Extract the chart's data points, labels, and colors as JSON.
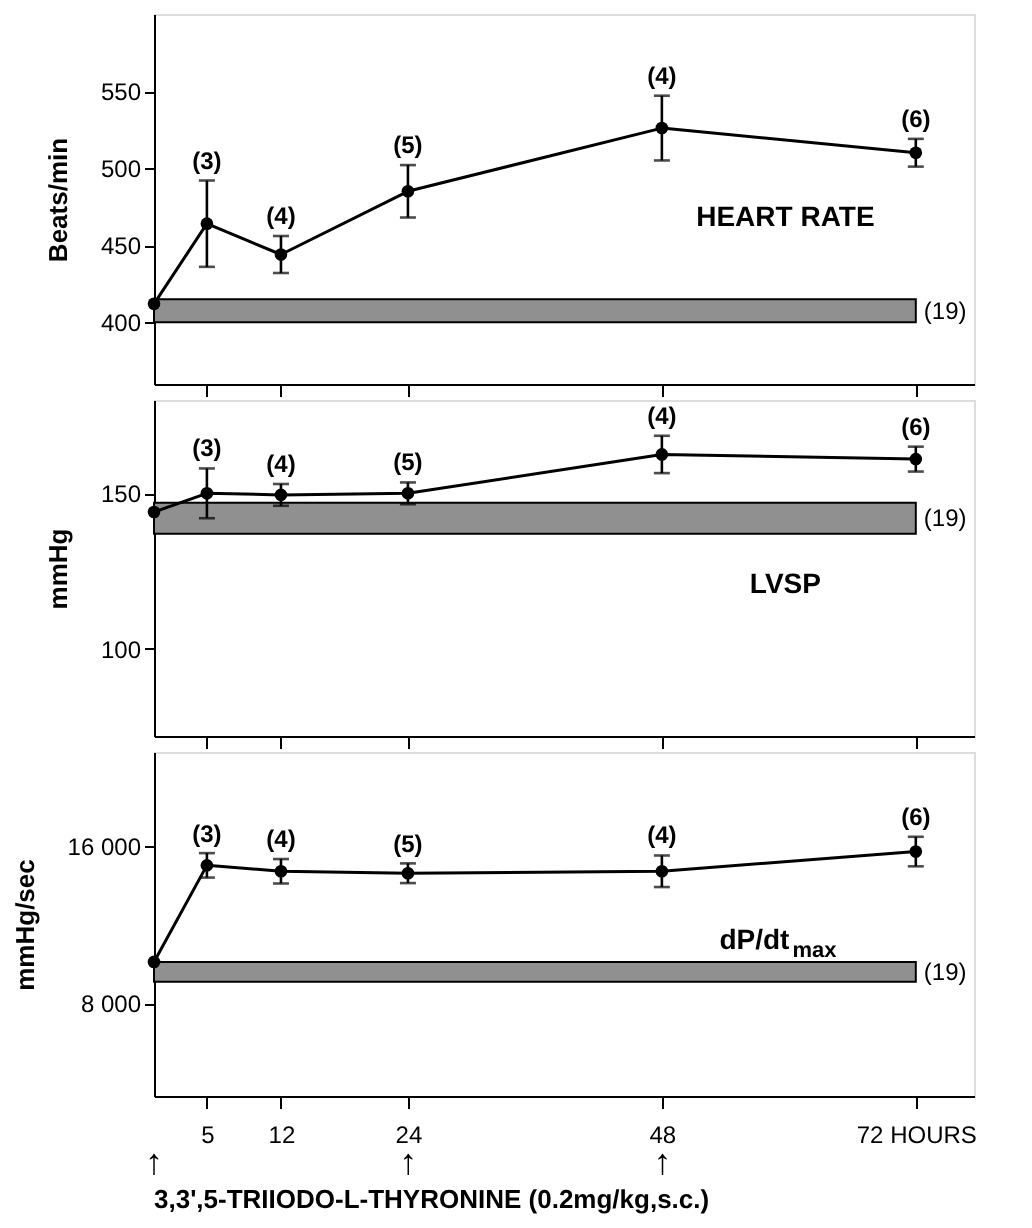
{
  "chart_data": [
    {
      "type": "line",
      "ylabel": "Beats/min",
      "x": [
        0,
        5,
        12,
        24,
        48,
        72
      ],
      "xlim": [
        0,
        77.5
      ],
      "xticks": [
        5,
        12,
        24,
        48,
        72
      ],
      "ylim": [
        360,
        600
      ],
      "yticks": [
        400,
        450,
        500,
        550
      ],
      "tick_labels": "y",
      "marker": "circle",
      "grid": false,
      "series": [
        {
          "color": "#000000",
          "values": [
            412,
            464,
            444,
            485,
            526,
            510
          ],
          "errors": [
            null,
            28,
            12,
            17,
            21,
            9
          ]
        }
      ],
      "bands": [
        {
          "axis": "y",
          "from": 400,
          "to": 415,
          "label": "(19)",
          "color": "#909090"
        }
      ],
      "annotations": [
        "HEART RATE",
        {
          "text": "(3)",
          "x": 5,
          "y": 492
        },
        {
          "text": "(4)",
          "x": 12,
          "y": 456
        },
        {
          "text": "(5)",
          "x": 24,
          "y": 502
        },
        {
          "text": "(4)",
          "x": 48,
          "y": 547
        },
        {
          "text": "(6)",
          "x": 72,
          "y": 519
        }
      ]
    },
    {
      "type": "line",
      "ylabel": "mmHg",
      "x": [
        0,
        5,
        12,
        24,
        48,
        72
      ],
      "xlim": [
        0,
        77.5
      ],
      "xticks": [
        5,
        12,
        24,
        48,
        72
      ],
      "ylim": [
        72,
        180
      ],
      "yticks": [
        100,
        150
      ],
      "tick_labels": "y",
      "marker": "circle",
      "grid": false,
      "series": [
        {
          "color": "#000000",
          "values": [
            144,
            150,
            149.5,
            150,
            162.5,
            161
          ],
          "errors": [
            null,
            8,
            3.5,
            3.5,
            6,
            4
          ]
        }
      ],
      "bands": [
        {
          "axis": "y",
          "from": 137,
          "to": 147,
          "label": "(19)",
          "color": "#909090"
        }
      ],
      "annotations": [
        "LVSP",
        {
          "text": "(3)",
          "x": 5,
          "y": 158
        },
        {
          "text": "(4)",
          "x": 12,
          "y": 153
        },
        {
          "text": "(5)",
          "x": 24,
          "y": 153.5
        },
        {
          "text": "(4)",
          "x": 48,
          "y": 168.5
        },
        {
          "text": "(6)",
          "x": 72,
          "y": 165
        }
      ]
    },
    {
      "type": "line",
      "ylabel": "mmHg/sec",
      "x": [
        0,
        5,
        12,
        24,
        48,
        72
      ],
      "xlim": [
        0,
        77.5
      ],
      "xticks": [
        5,
        12,
        24,
        48,
        {
          "value": 72,
          "label": "72 HOURS"
        }
      ],
      "ylim": [
        3300,
        20750
      ],
      "yticks": [
        {
          "value": 8000,
          "label": "8 000"
        },
        {
          "value": 16000,
          "label": "16 000"
        }
      ],
      "marker": "circle",
      "grid": false,
      "series": [
        {
          "color": "#000000",
          "values": [
            10100,
            15000,
            14700,
            14600,
            14700,
            15700
          ],
          "errors": [
            null,
            620,
            620,
            500,
            800,
            750
          ]
        }
      ],
      "bands": [
        {
          "axis": "y",
          "from": 9100,
          "to": 10100,
          "label": "(19)",
          "color": "#909090"
        }
      ],
      "annotations": [
        "dP/dt$_{max}$",
        {
          "text": "(3)",
          "x": 5,
          "y": 15570
        },
        {
          "text": "(4)",
          "x": 12,
          "y": 15320
        },
        {
          "text": "(5)",
          "x": 24,
          "y": 15050
        },
        {
          "text": "(4)",
          "x": 48,
          "y": 15500
        },
        {
          "text": "(6)",
          "x": 72,
          "y": 16450
        },
        "3,3',5-TRIIODO-L-THYRONINE (0.2mg/kg,s.c.)",
        "↑",
        "↑",
        "↑"
      ]
    }
  ]
}
